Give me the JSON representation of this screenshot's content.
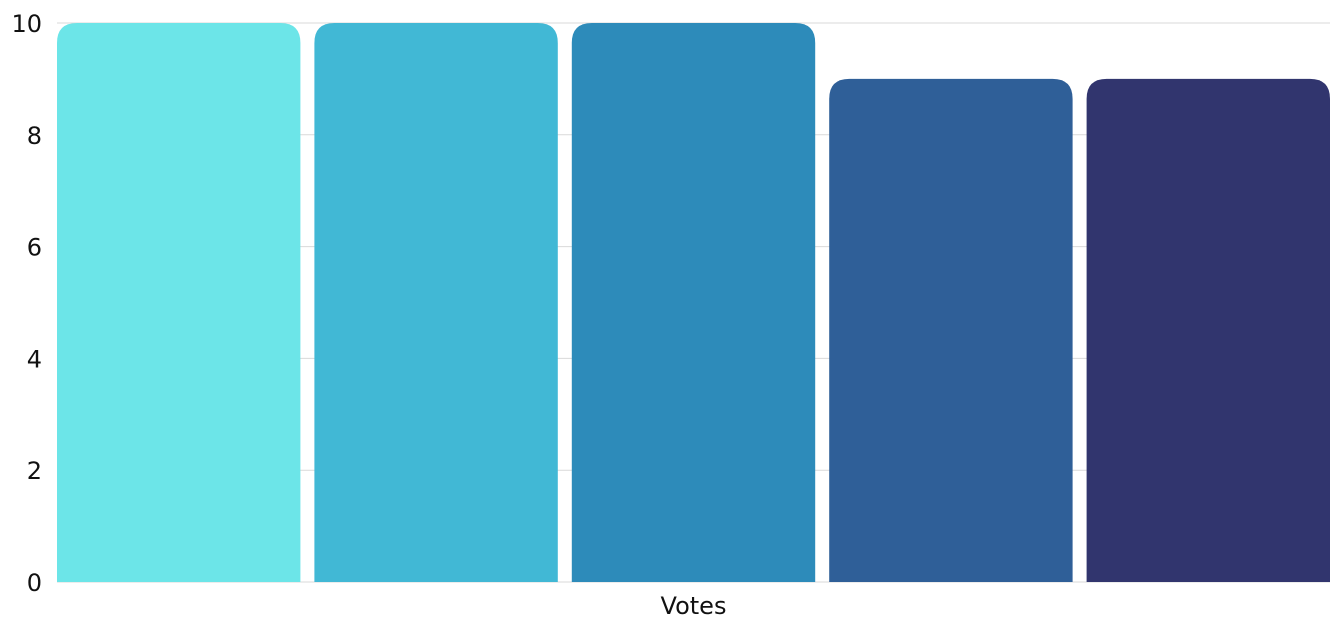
{
  "chart_data": {
    "type": "bar",
    "title": "",
    "xlabel": "Votes",
    "ylabel": "",
    "ylim": [
      0,
      10
    ],
    "yticks": [
      0,
      2,
      4,
      6,
      8,
      10
    ],
    "grid": true,
    "legend": "none",
    "series": [
      {
        "values": [
          10
        ],
        "color": "#6ce5e8"
      },
      {
        "values": [
          10
        ],
        "color": "#41b8d5"
      },
      {
        "values": [
          10
        ],
        "color": "#2d8bba"
      },
      {
        "values": [
          9
        ],
        "color": "#2f5f98"
      },
      {
        "values": [
          9
        ],
        "color": "#31356e"
      }
    ]
  }
}
